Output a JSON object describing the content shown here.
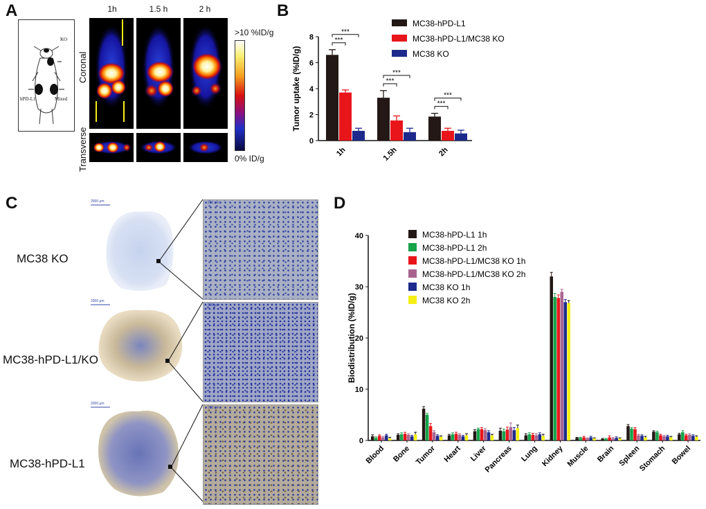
{
  "panel_a": {
    "letter": "A",
    "times": [
      "1h",
      "1.5 h",
      "2 h"
    ],
    "view_coronal": "Coronal",
    "view_transverse": "Transverse",
    "scale_max": ">10 %ID/g",
    "scale_min": "0% ID/g",
    "mouse_labels": {
      "ko": "KO",
      "hpd": "hPD-L1",
      "mixed": "Mixed"
    }
  },
  "panel_b": {
    "letter": "B",
    "sig": "***"
  },
  "panel_c": {
    "letter": "C",
    "labels": [
      "MC38 KO",
      "MC38-hPD-L1/KO",
      "MC38-hPD-L1"
    ],
    "scalebar_large": "2000 μm",
    "scalebar_small": "200 μm"
  },
  "panel_d": {
    "letter": "D"
  },
  "chart_data": [
    {
      "type": "bar",
      "ylabel": "Tumor uptake (%ID/g)",
      "categories": [
        "1h",
        "1.5h",
        "2h"
      ],
      "ylim": [
        0,
        8
      ],
      "yticks": [
        0,
        2,
        4,
        6,
        8
      ],
      "legend_position": "top-right",
      "series": [
        {
          "name": "MC38-hPD-L1",
          "color": "#231815",
          "values": [
            6.6,
            3.3,
            1.85
          ],
          "errors": [
            0.4,
            0.55,
            0.25
          ]
        },
        {
          "name": "MC38-hPD-L1/MC38 KO",
          "color": "#e8151b",
          "values": [
            3.7,
            1.55,
            0.75
          ],
          "errors": [
            0.2,
            0.35,
            0.2
          ]
        },
        {
          "name": "MC38 KO",
          "color": "#1d2a8c",
          "values": [
            0.75,
            0.65,
            0.55
          ],
          "errors": [
            0.2,
            0.3,
            0.25
          ]
        }
      ]
    },
    {
      "type": "bar",
      "ylabel": "Biodistribution (%ID/g)",
      "categories": [
        "Blood",
        "Bone",
        "Tumor",
        "Heart",
        "Liver",
        "Pancreas",
        "Lung",
        "Kidney",
        "Muscle",
        "Brain",
        "Spleen",
        "Stomach",
        "Bowel"
      ],
      "ylim": [
        0,
        40
      ],
      "yticks": [
        0,
        10,
        20,
        30,
        40
      ],
      "legend_position": "top-left",
      "series": [
        {
          "name": "MC38-hPD-L1 1h",
          "color": "#231815",
          "values": [
            0.8,
            1.1,
            6.2,
            1.0,
            1.8,
            1.9,
            1.0,
            32.0,
            0.5,
            0.3,
            2.8,
            1.7,
            1.2
          ],
          "errors": [
            0.3,
            0.2,
            0.4,
            0.2,
            0.3,
            0.5,
            0.3,
            0.8,
            0.1,
            0.1,
            0.3,
            0.2,
            0.2
          ]
        },
        {
          "name": "MC38-hPD-L1 2h",
          "color": "#16a34a",
          "values": [
            0.5,
            1.2,
            5.0,
            1.2,
            2.2,
            1.8,
            1.2,
            28.0,
            0.5,
            0.3,
            2.3,
            1.6,
            1.6
          ],
          "errors": [
            0.2,
            0.3,
            0.3,
            0.3,
            0.2,
            0.4,
            0.3,
            0.7,
            0.1,
            0.1,
            0.2,
            0.2,
            0.3
          ]
        },
        {
          "name": "MC38-hPD-L1/MC38 KO 1h",
          "color": "#e8151b",
          "values": [
            0.9,
            1.3,
            2.8,
            1.3,
            2.2,
            2.1,
            1.1,
            27.8,
            0.6,
            0.6,
            2.2,
            1.0,
            1.0
          ],
          "errors": [
            0.2,
            0.3,
            0.5,
            0.3,
            0.3,
            0.5,
            0.3,
            0.6,
            0.2,
            0.3,
            0.3,
            0.2,
            0.2
          ]
        },
        {
          "name": "MC38-hPD-L1/MC38 KO 2h",
          "color": "#a8648e",
          "values": [
            0.6,
            1.1,
            1.6,
            1.1,
            2.0,
            2.6,
            1.0,
            29.0,
            0.4,
            0.4,
            1.0,
            0.8,
            1.1
          ],
          "errors": [
            0.2,
            0.2,
            0.3,
            0.2,
            0.3,
            0.8,
            0.3,
            0.5,
            0.1,
            0.2,
            0.2,
            0.2,
            0.2
          ]
        },
        {
          "name": "MC38 KO 1h",
          "color": "#1d2a8c",
          "values": [
            1.0,
            0.8,
            0.9,
            0.8,
            1.6,
            2.0,
            1.2,
            27.0,
            0.6,
            0.5,
            0.9,
            0.8,
            0.9
          ],
          "errors": [
            0.2,
            0.2,
            0.2,
            0.2,
            0.3,
            0.5,
            0.3,
            0.5,
            0.2,
            0.2,
            0.2,
            0.2,
            0.2
          ]
        },
        {
          "name": "MC38 KO 2h",
          "color": "#f5ef16",
          "values": [
            0.4,
            1.2,
            0.7,
            1.0,
            1.0,
            2.4,
            0.9,
            26.8,
            0.4,
            0.4,
            0.6,
            0.6,
            0.7
          ],
          "errors": [
            0.2,
            0.4,
            0.2,
            0.3,
            0.2,
            0.6,
            0.3,
            0.5,
            0.1,
            0.1,
            0.2,
            0.2,
            0.2
          ]
        }
      ]
    }
  ]
}
